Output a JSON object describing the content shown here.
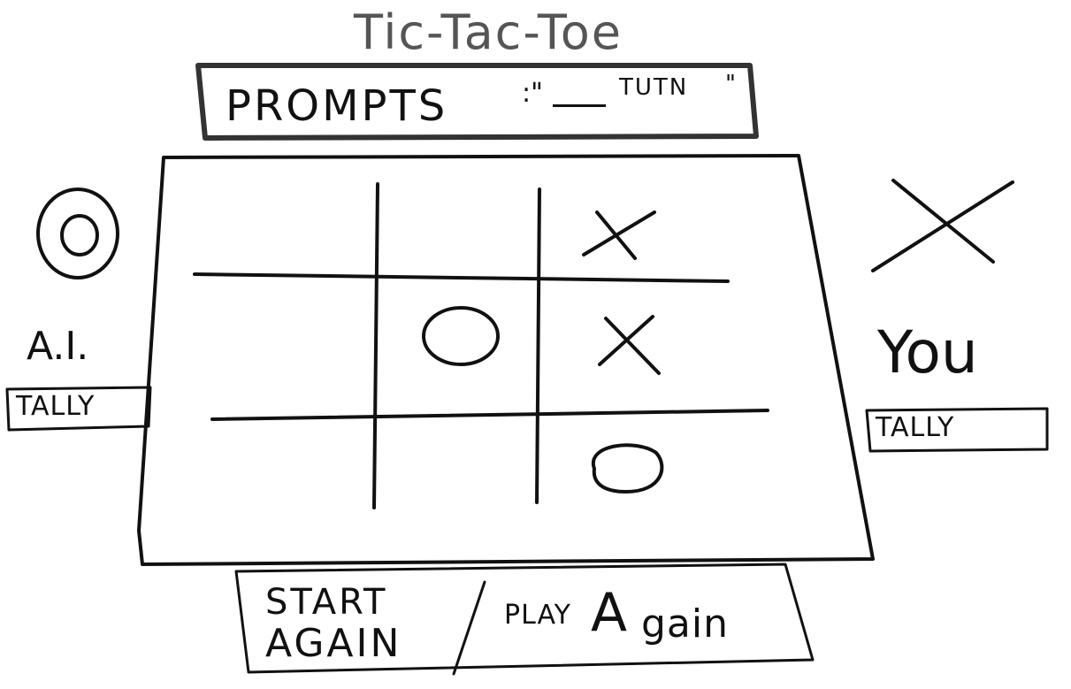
{
  "title": "Tic-Tac-Toe",
  "prompt": {
    "label": "PROMPTS",
    "quote_open": ":\"",
    "turn_text": "TUTN",
    "quote_close": "\""
  },
  "players": {
    "ai": {
      "mark_icon": "circle-o-icon",
      "label": "A.I.",
      "tally_label": "TALLY"
    },
    "you": {
      "mark_icon": "x-cross-icon",
      "label": "You",
      "tally_label": "TALLY"
    }
  },
  "board": {
    "cells": [
      [
        "",
        "",
        "X"
      ],
      [
        "",
        "O",
        "X"
      ],
      [
        "",
        "",
        "O"
      ]
    ]
  },
  "buttons": {
    "start_line1": "START",
    "start_line2": "AGAIN",
    "play_small": "PLAY",
    "play_big": "A",
    "play_rest": "gain"
  },
  "colors": {
    "ink": "#111111",
    "box_ink": "#333333",
    "background": "#ffffff"
  }
}
